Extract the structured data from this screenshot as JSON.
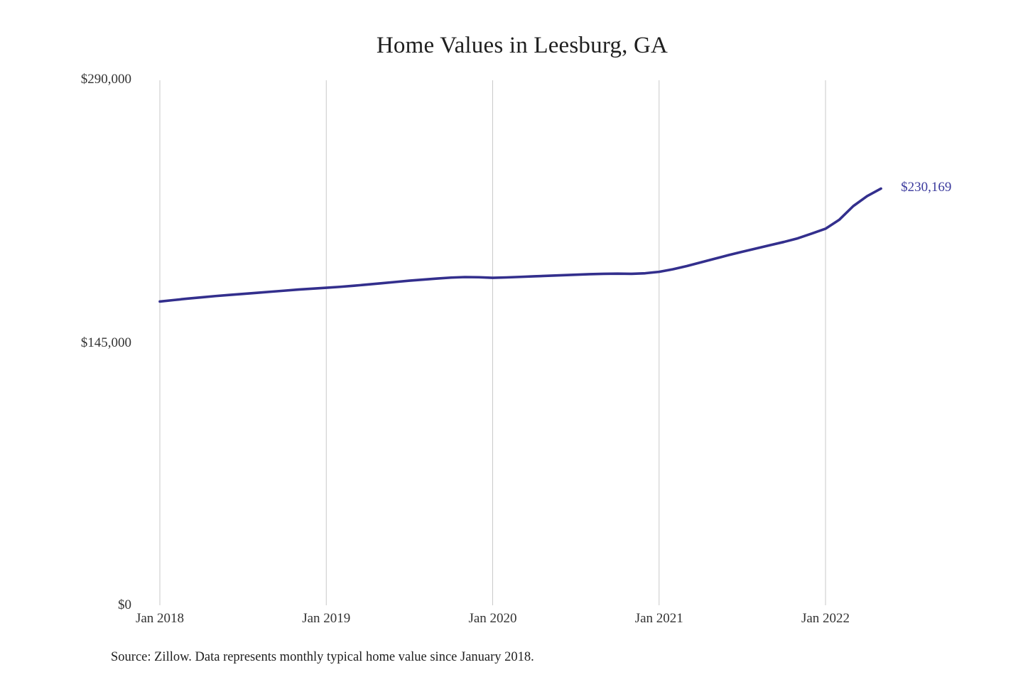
{
  "chart_data": {
    "type": "line",
    "title": "Home Values in Leesburg, GA",
    "xlabel": "",
    "ylabel": "",
    "ylim": [
      0,
      290000
    ],
    "y_ticks": [
      290000,
      145000,
      0
    ],
    "y_tick_labels": [
      "$290,000",
      "$145,000",
      "$0"
    ],
    "x_tick_labels": [
      "Jan 2018",
      "Jan 2019",
      "Jan 2020",
      "Jan 2021",
      "Jan 2022"
    ],
    "grid": "vertical-only",
    "legend": "none",
    "line_color": "#332f8d",
    "annotation_color": "#3b3a9d",
    "grid_color": "#c9c9c9",
    "end_label": "$230,169",
    "source": "Source: Zillow. Data represents monthly typical home value since January 2018.",
    "series": [
      {
        "name": "Typical home value",
        "x": [
          "Jan 2018",
          "Feb 2018",
          "Mar 2018",
          "Apr 2018",
          "May 2018",
          "Jun 2018",
          "Jul 2018",
          "Aug 2018",
          "Sep 2018",
          "Oct 2018",
          "Nov 2018",
          "Dec 2018",
          "Jan 2019",
          "Feb 2019",
          "Mar 2019",
          "Apr 2019",
          "May 2019",
          "Jun 2019",
          "Jul 2019",
          "Aug 2019",
          "Sep 2019",
          "Oct 2019",
          "Nov 2019",
          "Dec 2019",
          "Jan 2020",
          "Feb 2020",
          "Mar 2020",
          "Apr 2020",
          "May 2020",
          "Jun 2020",
          "Jul 2020",
          "Aug 2020",
          "Sep 2020",
          "Oct 2020",
          "Nov 2020",
          "Dec 2020",
          "Jan 2021",
          "Feb 2021",
          "Mar 2021",
          "Apr 2021",
          "May 2021",
          "Jun 2021",
          "Jul 2021",
          "Aug 2021",
          "Sep 2021",
          "Oct 2021",
          "Nov 2021",
          "Dec 2021",
          "Jan 2022",
          "Feb 2022",
          "Mar 2022",
          "Apr 2022",
          "May 2022"
        ],
        "values": [
          167800,
          168600,
          169400,
          170100,
          170800,
          171400,
          172000,
          172600,
          173200,
          173800,
          174400,
          174900,
          175400,
          175900,
          176500,
          177200,
          177900,
          178600,
          179300,
          179900,
          180500,
          181000,
          181300,
          181200,
          180900,
          181100,
          181400,
          181700,
          182000,
          182300,
          182600,
          182900,
          183100,
          183200,
          183100,
          183400,
          184200,
          185600,
          187400,
          189400,
          191400,
          193400,
          195300,
          197100,
          198900,
          200700,
          202700,
          205300,
          208000,
          213000,
          220500,
          226000,
          230169
        ]
      }
    ]
  }
}
